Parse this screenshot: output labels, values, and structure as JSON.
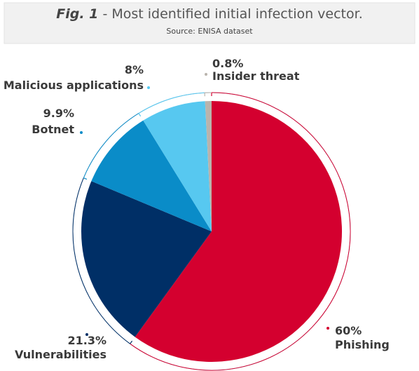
{
  "chart_data": {
    "type": "pie",
    "title_label": "Fig. 1",
    "title": "- Most identified initial infection vector.",
    "subtitle": "Source: ENISA dataset",
    "categories": [
      "Phishing",
      "Vulnerabilities",
      "Botnet",
      "Malicious applications",
      "Insider threat"
    ],
    "values": [
      60,
      21.3,
      9.9,
      8,
      0.8
    ],
    "value_labels": [
      "60%",
      "21.3%",
      "9.9%",
      "8%",
      "0.8%"
    ],
    "colors": [
      "#d4002f",
      "#002f66",
      "#0a8cc8",
      "#57c8f0",
      "#b9b4ad"
    ]
  }
}
